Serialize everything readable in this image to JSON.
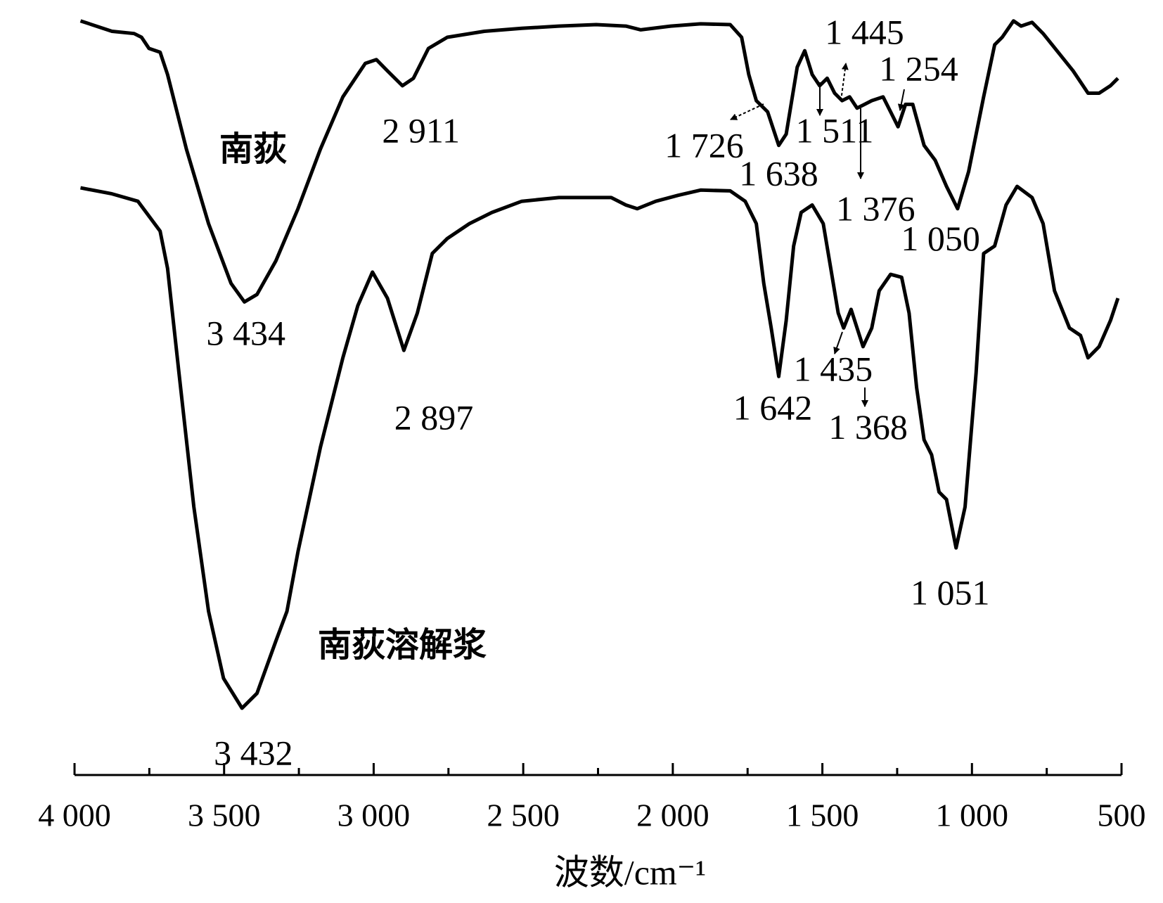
{
  "chart_data": {
    "type": "line",
    "x_label": "波数/cm⁻¹",
    "xlim": [
      4000,
      500
    ],
    "ylim": [
      0,
      1000
    ],
    "xticks": [
      {
        "value": 4000,
        "label": "4 000"
      },
      {
        "value": 3500,
        "label": "3 500"
      },
      {
        "value": 3000,
        "label": "3 000"
      },
      {
        "value": 2500,
        "label": "2 500"
      },
      {
        "value": 2000,
        "label": "2 000"
      },
      {
        "value": 1500,
        "label": "1 500"
      },
      {
        "value": 1000,
        "label": "1 000"
      },
      500
    ],
    "xminorticks": [
      3750,
      3250,
      2750,
      2250,
      1750,
      1250,
      750
    ],
    "series": [
      {
        "name": "南荻",
        "color": "#000000",
        "x": [
          3980,
          3875,
          3801,
          3776,
          3751,
          3714,
          3689,
          3626,
          3552,
          3477,
          3432,
          3390,
          3327,
          3253,
          3178,
          3103,
          3028,
          2991,
          2954,
          2904,
          2867,
          2817,
          2754,
          2630,
          2505,
          2381,
          2256,
          2157,
          2107,
          2007,
          1907,
          1808,
          1770,
          1746,
          1721,
          1683,
          1646,
          1621,
          1584,
          1559,
          1534,
          1509,
          1484,
          1459,
          1434,
          1409,
          1384,
          1359,
          1335,
          1297,
          1272,
          1247,
          1222,
          1198,
          1160,
          1123,
          1085,
          1048,
          1011,
          961,
          924,
          899,
          861,
          836,
          799,
          762,
          712,
          662,
          612,
          575,
          537,
          512
        ],
        "values": [
          972,
          958,
          955,
          950,
          935,
          930,
          900,
          800,
          700,
          620,
          595,
          605,
          650,
          720,
          800,
          870,
          915,
          920,
          905,
          885,
          895,
          935,
          950,
          958,
          962,
          965,
          967,
          965,
          960,
          965,
          968,
          967,
          950,
          900,
          865,
          850,
          805,
          820,
          910,
          932,
          900,
          885,
          895,
          875,
          865,
          870,
          855,
          860,
          865,
          870,
          850,
          830,
          860,
          860,
          805,
          785,
          750,
          720,
          770,
          870,
          940,
          950,
          972,
          965,
          970,
          955,
          930,
          905,
          875,
          875,
          885,
          895
        ]
      },
      {
        "name": "南荻溶解浆",
        "color": "#000000",
        "x": [
          3980,
          3875,
          3788,
          3751,
          3714,
          3689,
          3651,
          3601,
          3552,
          3502,
          3440,
          3390,
          3327,
          3290,
          3253,
          3178,
          3103,
          3053,
          3004,
          2954,
          2899,
          2854,
          2804,
          2754,
          2680,
          2605,
          2505,
          2381,
          2206,
          2157,
          2119,
          2057,
          1982,
          1907,
          1808,
          1758,
          1721,
          1696,
          1671,
          1646,
          1621,
          1596,
          1571,
          1534,
          1497,
          1472,
          1447,
          1429,
          1404,
          1384,
          1364,
          1335,
          1310,
          1272,
          1235,
          1210,
          1185,
          1160,
          1135,
          1110,
          1085,
          1053,
          1023,
          986,
          961,
          924,
          886,
          849,
          799,
          762,
          724,
          674,
          637,
          612,
          575,
          537,
          512
        ],
        "values": [
          748,
          740,
          730,
          710,
          690,
          640,
          500,
          320,
          180,
          90,
          50,
          70,
          140,
          180,
          260,
          400,
          520,
          590,
          635,
          600,
          530,
          580,
          660,
          680,
          700,
          715,
          730,
          735,
          735,
          725,
          720,
          730,
          738,
          745,
          744,
          730,
          700,
          620,
          560,
          495,
          570,
          670,
          715,
          725,
          700,
          640,
          580,
          560,
          585,
          560,
          535,
          560,
          610,
          632,
          628,
          580,
          480,
          410,
          390,
          340,
          330,
          265,
          320,
          500,
          660,
          670,
          725,
          750,
          735,
          700,
          610,
          560,
          550,
          520,
          535,
          570,
          600
        ]
      }
    ],
    "annotations": [
      {
        "text": "3 434",
        "x": 3427,
        "y": 548
      },
      {
        "text": "2 911",
        "x": 2842,
        "y": 820
      },
      {
        "text": "1 726",
        "x": 1895,
        "y": 800
      },
      {
        "text": "1 638",
        "x": 1646,
        "y": 762
      },
      {
        "text": "1 511",
        "x": 1459,
        "y": 820
      },
      {
        "text": "1 445",
        "x": 1359,
        "y": 952
      },
      {
        "text": "1 254",
        "x": 1178,
        "y": 903
      },
      {
        "text": "1 376",
        "x": 1322,
        "y": 715
      },
      {
        "text": "1 050",
        "x": 1105,
        "y": 675
      },
      {
        "text": "3 432",
        "x": 3402,
        "y": -15
      },
      {
        "text": "2 897",
        "x": 2799,
        "y": 435
      },
      {
        "text": "1 642",
        "x": 1666,
        "y": 448
      },
      {
        "text": "1 435",
        "x": 1464,
        "y": 500
      },
      {
        "text": "1 368",
        "x": 1347,
        "y": 422
      },
      {
        "text": "1 051",
        "x": 1073,
        "y": 200
      }
    ]
  }
}
